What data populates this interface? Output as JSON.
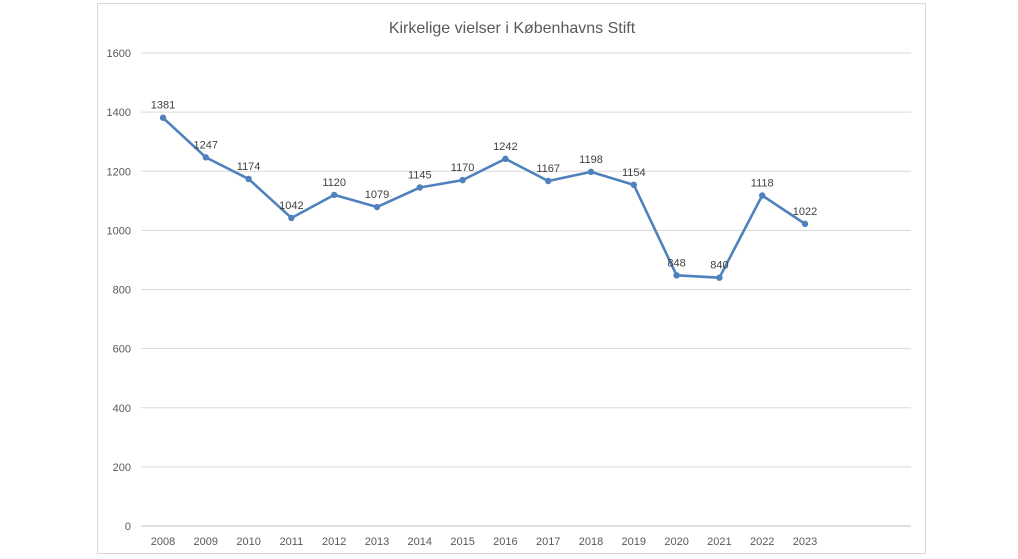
{
  "colors": {
    "line": "#4f81bd",
    "grid": "#d9d9d9",
    "axis": "#bfbfbf",
    "text": "#595959"
  },
  "chart_data": {
    "type": "line",
    "title": "Kirkelige vielser i Københavns Stift",
    "xlabel": "",
    "ylabel": "",
    "categories": [
      "2008",
      "2009",
      "2010",
      "2011",
      "2012",
      "2013",
      "2014",
      "2015",
      "2016",
      "2017",
      "2018",
      "2019",
      "2020",
      "2021",
      "2022",
      "2023"
    ],
    "series": [
      {
        "values": [
          1381,
          1247,
          1174,
          1042,
          1120,
          1079,
          1145,
          1170,
          1242,
          1167,
          1198,
          1154,
          848,
          840,
          1118,
          1022
        ]
      }
    ],
    "ylim": [
      0,
      1600
    ],
    "yticks": [
      0,
      200,
      400,
      600,
      800,
      1000,
      1200,
      1400,
      1600
    ],
    "grid": true,
    "legend": "none",
    "data_labels": true
  }
}
